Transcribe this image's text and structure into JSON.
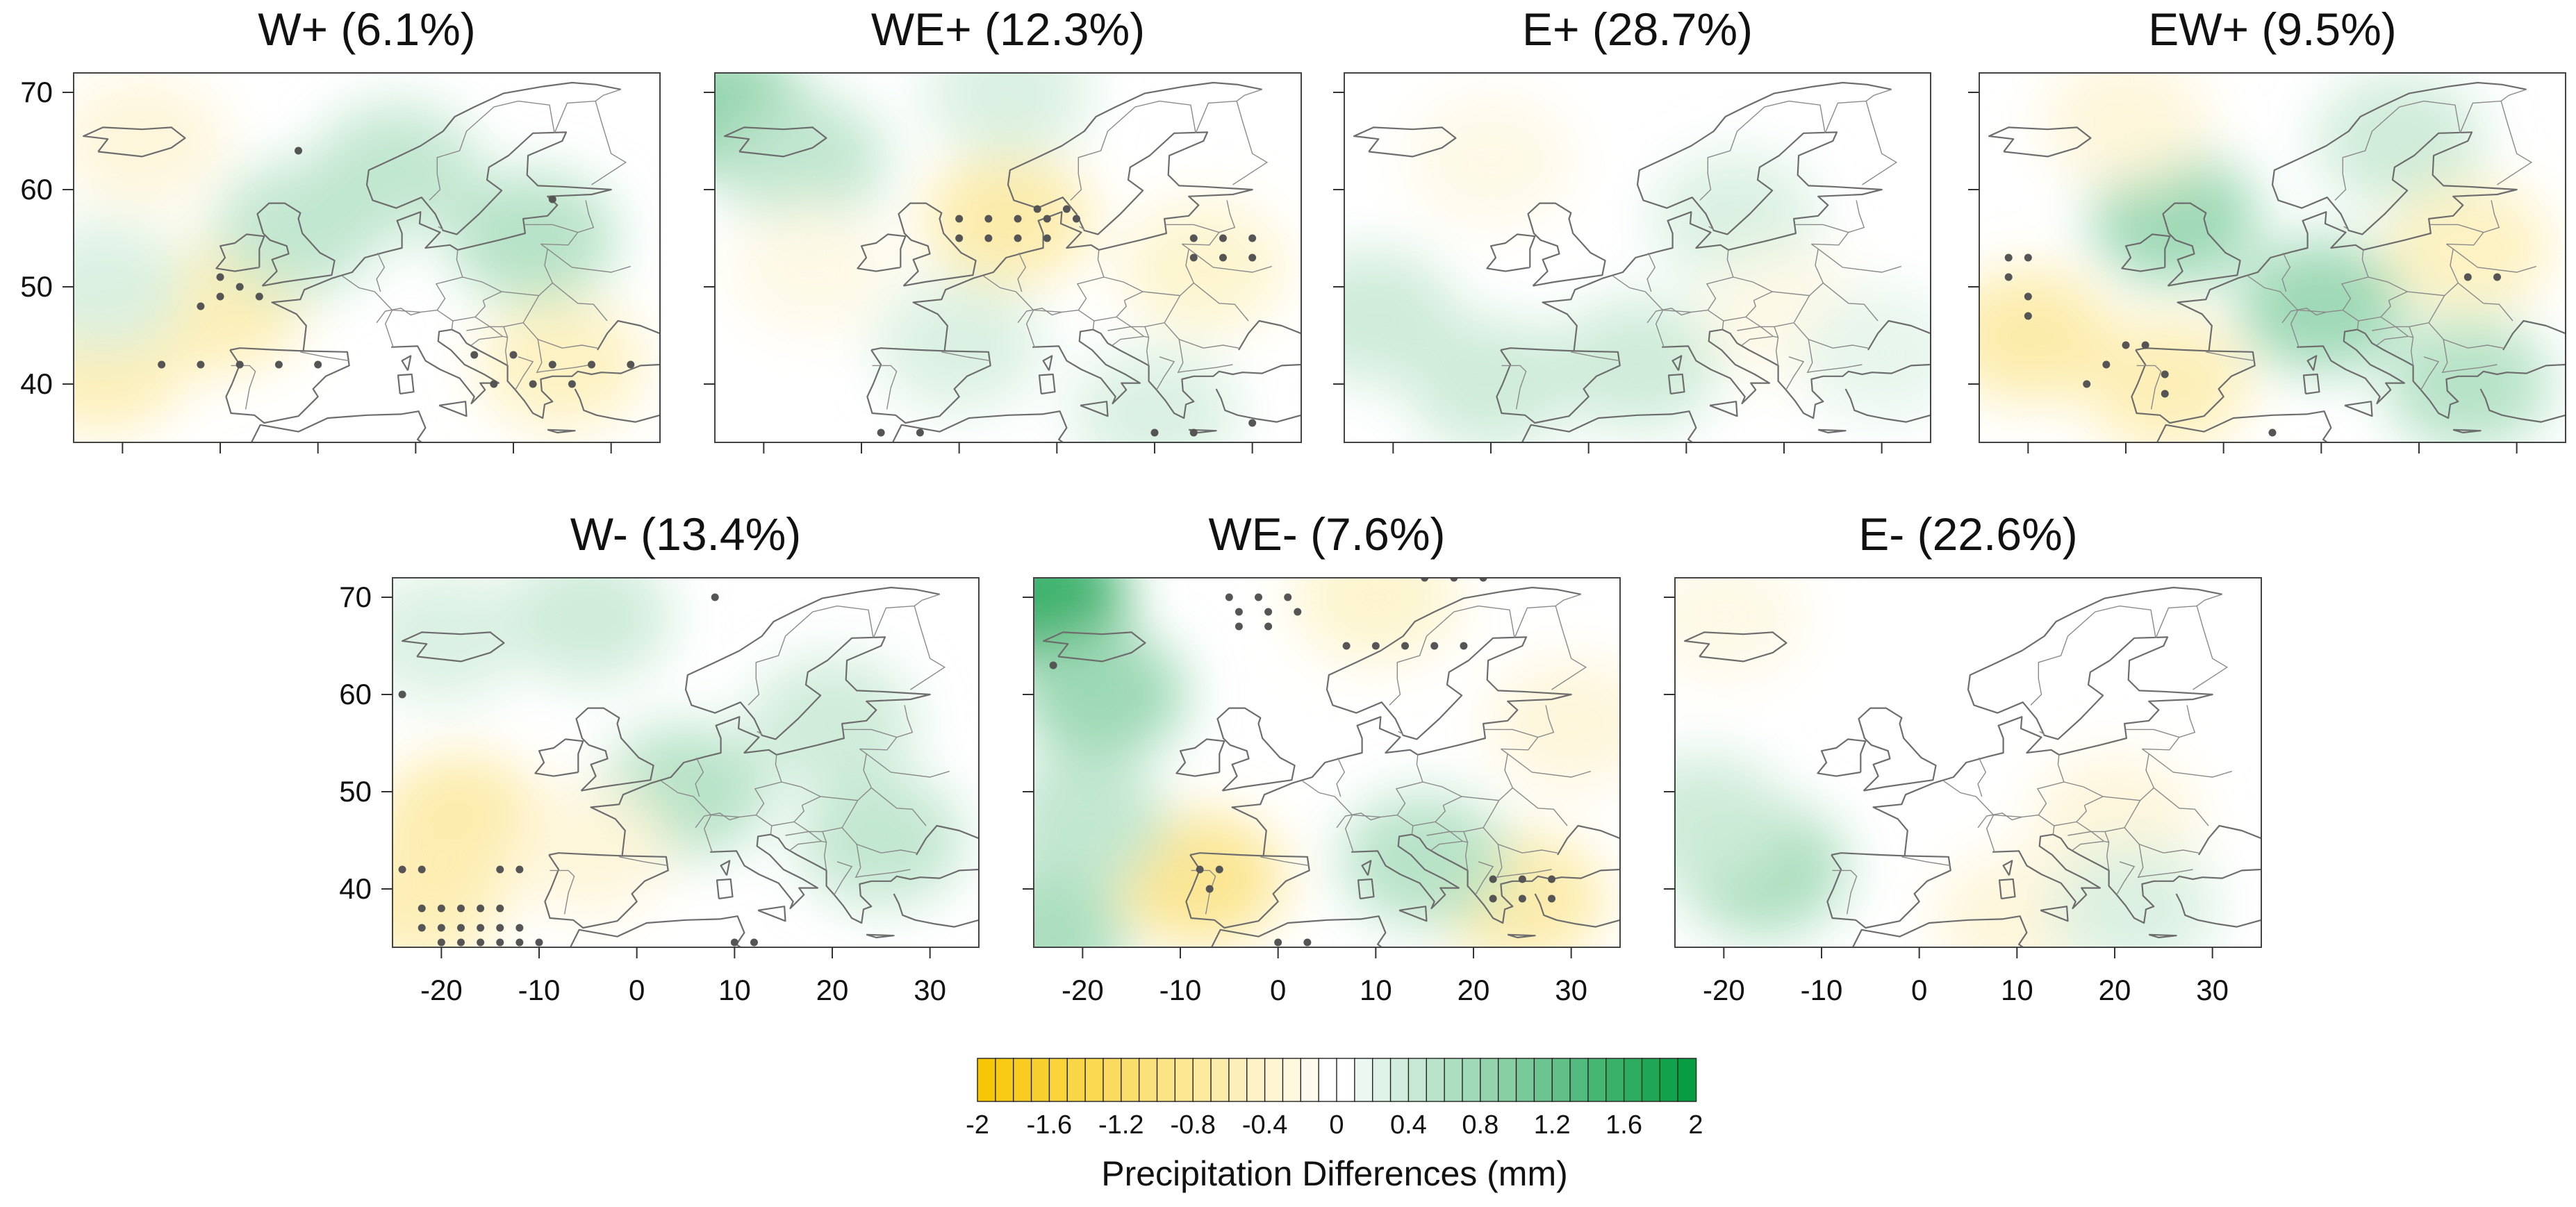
{
  "chart_data": {
    "type": "heatmap",
    "description_variable": "Precipitation Differences (mm)",
    "x_axis": {
      "label": "",
      "ticks": [
        -20,
        -10,
        0,
        10,
        20,
        30
      ],
      "tick_labels": [
        "-20",
        "-10",
        "0",
        "10",
        "20",
        "30"
      ],
      "range": [
        -25,
        35
      ]
    },
    "y_axis": {
      "label": "",
      "ticks": [
        40,
        50,
        60,
        70
      ],
      "tick_labels": [
        "40",
        "50",
        "60",
        "70"
      ],
      "range": [
        34,
        72
      ]
    },
    "panels": [
      {
        "id": "wplus",
        "title": "W+ (6.1%)",
        "name": "W+",
        "frequency_pct": 6.1,
        "anomalies": [
          {
            "lon": -10,
            "lat": 48,
            "value": -0.6
          },
          {
            "lon": -22,
            "lat": 42,
            "value": -0.6
          },
          {
            "lon": -2,
            "lat": 56,
            "value": 0.5
          },
          {
            "lon": 22,
            "lat": 55,
            "value": 0.6
          },
          {
            "lon": 8,
            "lat": 62,
            "value": 0.5
          },
          {
            "lon": 25,
            "lat": 42,
            "value": -0.5
          },
          {
            "lon": -18,
            "lat": 65,
            "value": -0.3
          },
          {
            "lon": -22,
            "lat": 50,
            "value": 0.3
          }
        ],
        "dots": [
          [
            -10,
            49
          ],
          [
            -12,
            48
          ],
          [
            -8,
            50
          ],
          [
            -6,
            49
          ],
          [
            -10,
            51
          ],
          [
            -16,
            42
          ],
          [
            -12,
            42
          ],
          [
            -8,
            42
          ],
          [
            -4,
            42
          ],
          [
            0,
            42
          ],
          [
            16,
            43
          ],
          [
            20,
            43
          ],
          [
            24,
            42
          ],
          [
            28,
            42
          ],
          [
            32,
            42
          ],
          [
            18,
            40
          ],
          [
            22,
            40
          ],
          [
            26,
            40
          ],
          [
            -2,
            64
          ],
          [
            24,
            59
          ]
        ]
      },
      {
        "id": "weplus",
        "title": "WE+ (12.3%)",
        "name": "WE+",
        "frequency_pct": 12.3,
        "anomalies": [
          {
            "lon": 5,
            "lat": 57,
            "value": -0.7
          },
          {
            "lon": -24,
            "lat": 68,
            "value": 0.9
          },
          {
            "lon": -16,
            "lat": 63,
            "value": 0.5
          },
          {
            "lon": 25,
            "lat": 52,
            "value": -0.4
          },
          {
            "lon": 0,
            "lat": 44,
            "value": 0.3
          },
          {
            "lon": 20,
            "lat": 37,
            "value": 0.3
          },
          {
            "lon": -15,
            "lat": 52,
            "value": -0.2
          },
          {
            "lon": 5,
            "lat": 70,
            "value": 0.3
          }
        ],
        "dots": [
          [
            0,
            57
          ],
          [
            3,
            57
          ],
          [
            6,
            57
          ],
          [
            9,
            57
          ],
          [
            12,
            57
          ],
          [
            0,
            55
          ],
          [
            3,
            55
          ],
          [
            6,
            55
          ],
          [
            9,
            55
          ],
          [
            24,
            55
          ],
          [
            27,
            55
          ],
          [
            30,
            55
          ],
          [
            24,
            53
          ],
          [
            27,
            53
          ],
          [
            30,
            53
          ],
          [
            8,
            58
          ],
          [
            11,
            58
          ],
          [
            -8,
            35
          ],
          [
            -4,
            35
          ],
          [
            20,
            35
          ],
          [
            24,
            35
          ],
          [
            30,
            36
          ]
        ]
      },
      {
        "id": "eplus",
        "title": "E+ (28.7%)",
        "name": "E+",
        "frequency_pct": 28.7,
        "anomalies": [
          {
            "lon": -22,
            "lat": 47,
            "value": 0.4
          },
          {
            "lon": -10,
            "lat": 40,
            "value": 0.4
          },
          {
            "lon": 5,
            "lat": 42,
            "value": 0.4
          },
          {
            "lon": 15,
            "lat": 57,
            "value": 0.3
          },
          {
            "lon": -10,
            "lat": 63,
            "value": -0.2
          },
          {
            "lon": 20,
            "lat": 47,
            "value": -0.2
          },
          {
            "lon": 30,
            "lat": 43,
            "value": 0.2
          }
        ],
        "dots": []
      },
      {
        "id": "ewplus",
        "title": "EW+ (9.5%)",
        "name": "EW+",
        "frequency_pct": 9.5,
        "anomalies": [
          {
            "lon": -20,
            "lat": 45,
            "value": -0.7
          },
          {
            "lon": -6,
            "lat": 40,
            "value": -0.6
          },
          {
            "lon": -5,
            "lat": 57,
            "value": 0.8
          },
          {
            "lon": 10,
            "lat": 48,
            "value": 0.8
          },
          {
            "lon": 25,
            "lat": 40,
            "value": 0.6
          },
          {
            "lon": 18,
            "lat": 65,
            "value": 0.4
          },
          {
            "lon": 25,
            "lat": 54,
            "value": -0.5
          },
          {
            "lon": -10,
            "lat": 67,
            "value": -0.3
          }
        ],
        "dots": [
          [
            -22,
            53
          ],
          [
            -20,
            53
          ],
          [
            -22,
            51
          ],
          [
            -20,
            49
          ],
          [
            -20,
            47
          ],
          [
            -10,
            44
          ],
          [
            -8,
            44
          ],
          [
            -12,
            42
          ],
          [
            -14,
            40
          ],
          [
            -6,
            41
          ],
          [
            -6,
            39
          ],
          [
            25,
            51
          ],
          [
            28,
            51
          ],
          [
            5,
            35
          ]
        ]
      },
      {
        "id": "wminus",
        "title": "W- (13.4%)",
        "name": "W-",
        "frequency_pct": 13.4,
        "anomalies": [
          {
            "lon": -18,
            "lat": 47,
            "value": -0.7
          },
          {
            "lon": -22,
            "lat": 39,
            "value": -0.6
          },
          {
            "lon": 5,
            "lat": 50,
            "value": 0.6
          },
          {
            "lon": 25,
            "lat": 45,
            "value": 0.5
          },
          {
            "lon": -5,
            "lat": 68,
            "value": 0.4
          },
          {
            "lon": -20,
            "lat": 66,
            "value": 0.3
          },
          {
            "lon": 20,
            "lat": 57,
            "value": 0.4
          },
          {
            "lon": -5,
            "lat": 44,
            "value": -0.3
          }
        ],
        "dots": [
          [
            -24,
            42
          ],
          [
            -22,
            42
          ],
          [
            -14,
            42
          ],
          [
            -12,
            42
          ],
          [
            -22,
            38
          ],
          [
            -20,
            38
          ],
          [
            -18,
            38
          ],
          [
            -16,
            38
          ],
          [
            -14,
            38
          ],
          [
            -22,
            36
          ],
          [
            -20,
            36
          ],
          [
            -18,
            36
          ],
          [
            -16,
            36
          ],
          [
            -14,
            36
          ],
          [
            -12,
            36
          ],
          [
            -20,
            34.5
          ],
          [
            -18,
            34.5
          ],
          [
            -16,
            34.5
          ],
          [
            -14,
            34.5
          ],
          [
            -12,
            34.5
          ],
          [
            -10,
            34.5
          ],
          [
            10,
            34.5
          ],
          [
            12,
            34.5
          ],
          [
            -24,
            60
          ],
          [
            8,
            70
          ]
        ]
      },
      {
        "id": "weminus",
        "title": "WE- (7.6%)",
        "name": "WE-",
        "frequency_pct": 7.6,
        "anomalies": [
          {
            "lon": -24,
            "lat": 70,
            "value": 1.6
          },
          {
            "lon": -18,
            "lat": 60,
            "value": 0.8
          },
          {
            "lon": -8,
            "lat": 41,
            "value": -0.9
          },
          {
            "lon": 25,
            "lat": 39,
            "value": -0.7
          },
          {
            "lon": 10,
            "lat": 70,
            "value": -0.4
          },
          {
            "lon": -20,
            "lat": 47,
            "value": 0.5
          },
          {
            "lon": 15,
            "lat": 43,
            "value": 0.6
          },
          {
            "lon": 30,
            "lat": 57,
            "value": -0.3
          },
          {
            "lon": -24,
            "lat": 35,
            "value": 0.7
          }
        ],
        "dots": [
          [
            -5,
            70
          ],
          [
            -2,
            70
          ],
          [
            1,
            70
          ],
          [
            -4,
            68.5
          ],
          [
            -1,
            68.5
          ],
          [
            2,
            68.5
          ],
          [
            -4,
            67
          ],
          [
            -1,
            67
          ],
          [
            7,
            65
          ],
          [
            10,
            65
          ],
          [
            13,
            65
          ],
          [
            16,
            65
          ],
          [
            19,
            65
          ],
          [
            15,
            72
          ],
          [
            18,
            72
          ],
          [
            21,
            72
          ],
          [
            -8,
            42
          ],
          [
            -6,
            42
          ],
          [
            -7,
            40
          ],
          [
            22,
            41
          ],
          [
            25,
            41
          ],
          [
            28,
            41
          ],
          [
            22,
            39
          ],
          [
            25,
            39
          ],
          [
            28,
            39
          ],
          [
            0,
            34.5
          ],
          [
            3,
            34.5
          ],
          [
            -23,
            63
          ]
        ]
      },
      {
        "id": "eminus",
        "title": "E- (22.6%)",
        "name": "E-",
        "frequency_pct": 22.6,
        "anomalies": [
          {
            "lon": -16,
            "lat": 42,
            "value": 0.7
          },
          {
            "lon": -22,
            "lat": 47,
            "value": 0.4
          },
          {
            "lon": 10,
            "lat": 37,
            "value": -0.3
          },
          {
            "lon": 20,
            "lat": 47,
            "value": -0.3
          },
          {
            "lon": 22,
            "lat": 38,
            "value": 0.3
          },
          {
            "lon": -20,
            "lat": 68,
            "value": -0.2
          }
        ],
        "dots": []
      }
    ],
    "colorbar": {
      "label": "Precipitation Differences (mm)",
      "min": -2,
      "max": 2,
      "levels": 40,
      "tick_values": [
        -2,
        -1.6,
        -1.2,
        -0.8,
        -0.4,
        0,
        0.4,
        0.8,
        1.2,
        1.6,
        2
      ],
      "tick_labels": [
        "-2",
        "-1.6",
        "-1.2",
        "-0.8",
        "-0.4",
        "0",
        "0.4",
        "0.8",
        "1.2",
        "1.6",
        "2"
      ],
      "negative_color": "#f7c600",
      "positive_color": "#009a3e",
      "zero_color": "#ffffff"
    }
  },
  "colors": {
    "background": "#ffffff",
    "coast": "#6d6d6d",
    "dots": "#555555"
  }
}
